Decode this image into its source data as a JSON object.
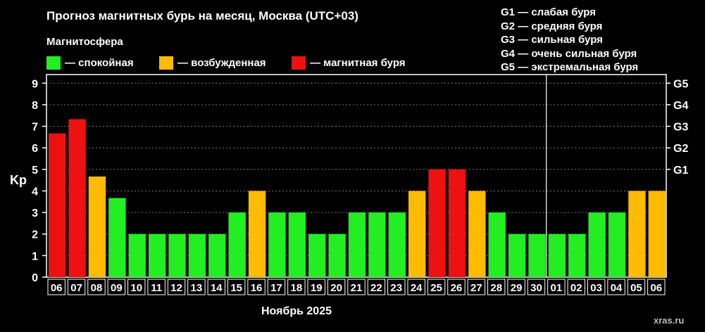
{
  "header": {
    "title": "Прогноз магнитных бурь на месяц, Москва (UTC+03)",
    "section_label": "Магнитосфера"
  },
  "legend": {
    "items": [
      {
        "label": "— спокойная",
        "color": "#22ee22"
      },
      {
        "label": "— возбужденная",
        "color": "#ffbb00"
      },
      {
        "label": "— магнитная буря",
        "color": "#ee1111"
      }
    ]
  },
  "g_scale_legend": [
    "G1 — слабая буря",
    "G2 — средняя буря",
    "G3 — сильная буря",
    "G4 — очень сильная буря",
    "G5 — экстремальная буря"
  ],
  "watermark": "xras.ru",
  "chart_data": {
    "type": "bar",
    "ylabel": "Kp",
    "xlabel": "Ноябрь 2025",
    "ylim": [
      0,
      9.4
    ],
    "y_ticks": [
      "0",
      "1",
      "2",
      "3",
      "4",
      "5",
      "6",
      "7",
      "8",
      "9"
    ],
    "right_axis_ticks": [
      {
        "label": "G1",
        "value": 5
      },
      {
        "label": "G2",
        "value": 6
      },
      {
        "label": "G3",
        "value": 7
      },
      {
        "label": "G4",
        "value": 8
      },
      {
        "label": "G5",
        "value": 9
      }
    ],
    "grid": true,
    "month_divider_after_index": 24,
    "categories": [
      "06",
      "07",
      "08",
      "09",
      "10",
      "11",
      "12",
      "13",
      "14",
      "15",
      "16",
      "17",
      "18",
      "19",
      "20",
      "21",
      "22",
      "23",
      "24",
      "25",
      "26",
      "27",
      "28",
      "29",
      "30",
      "01",
      "02",
      "03",
      "04",
      "05",
      "06"
    ],
    "values": [
      6.67,
      7.33,
      4.67,
      3.67,
      2,
      2,
      2,
      2,
      2,
      3,
      4,
      3,
      3,
      2,
      2,
      3,
      3,
      3,
      4,
      5,
      5,
      4,
      3,
      2,
      2,
      2,
      2,
      3,
      3,
      4,
      4
    ],
    "colors": {
      "quiet": "#22ee22",
      "active": "#ffbb00",
      "storm": "#ee1111"
    }
  }
}
